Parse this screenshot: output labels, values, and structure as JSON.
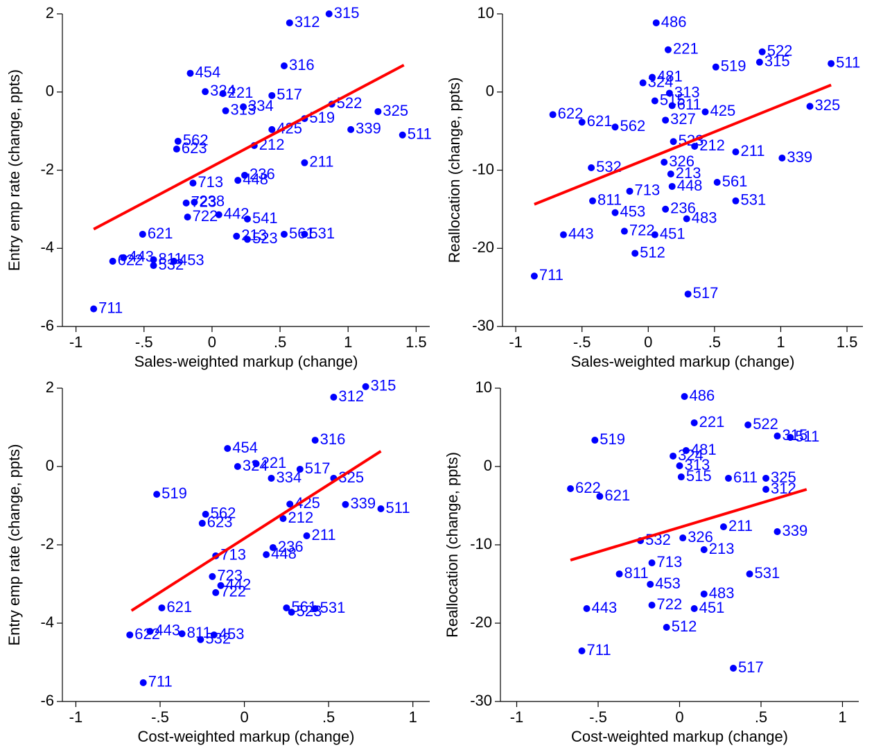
{
  "chart_data": [
    {
      "type": "scatter",
      "x_label": "Sales-weighted markup (change)",
      "y_label": "Entry emp rate (change, ppts)",
      "xlim": [
        -1.1,
        1.6
      ],
      "ylim": [
        -6,
        2
      ],
      "xticks": [
        -1,
        {
          "value": -0.5,
          "label": "-.5"
        },
        0,
        {
          "value": 0.5,
          "label": ".5"
        },
        1,
        1.5
      ],
      "yticks": [
        -6,
        -4,
        -2,
        0,
        2
      ],
      "color": "#0000ff",
      "labels": [
        "315",
        "312",
        "316",
        "454",
        "522",
        "325",
        "519",
        "339",
        "511",
        "425",
        "211",
        "621",
        "443",
        "622",
        "811",
        "532",
        "453",
        "711",
        "541",
        "561",
        "531",
        "523",
        "213",
        "713",
        "723",
        "722",
        "442",
        "448",
        "324",
        "313",
        "334",
        "517",
        "562",
        "623",
        "212",
        "238",
        "221",
        "236"
      ],
      "x": [
        0.86,
        0.57,
        0.53,
        -0.16,
        0.88,
        1.22,
        0.68,
        1.02,
        1.4,
        0.44,
        0.68,
        -0.51,
        -0.65,
        -0.73,
        -0.43,
        -0.43,
        -0.28,
        -0.87,
        0.26,
        0.53,
        0.68,
        0.26,
        0.18,
        -0.14,
        -0.19,
        -0.18,
        0.05,
        0.19,
        -0.05,
        0.1,
        0.23,
        0.44,
        -0.25,
        -0.26,
        0.31,
        -0.13,
        0.08,
        0.24
      ],
      "values": [
        2.0,
        1.77,
        0.67,
        0.48,
        -0.31,
        -0.5,
        -0.68,
        -0.96,
        -1.1,
        -0.96,
        -1.81,
        -3.64,
        -4.24,
        -4.33,
        -4.29,
        -4.44,
        -4.33,
        -5.55,
        -3.25,
        -3.64,
        -3.64,
        -3.77,
        -3.69,
        -2.33,
        -2.84,
        -3.2,
        -3.14,
        -2.26,
        0.01,
        -0.48,
        -0.38,
        -0.09,
        -1.26,
        -1.46,
        -1.37,
        -2.82,
        -0.04,
        -2.13
      ],
      "fit": {
        "x": [
          -0.87,
          1.41
        ],
        "values": [
          -3.51,
          0.69
        ],
        "color": "#ff0000"
      }
    },
    {
      "type": "scatter",
      "x_label": "Sales-weighted markup (change)",
      "y_label": "Reallocation (change, ppts)",
      "xlim": [
        -1.1,
        1.62
      ],
      "ylim": [
        -30,
        10
      ],
      "xticks": [
        -1,
        {
          "value": -0.5,
          "label": "-.5"
        },
        0,
        {
          "value": 0.5,
          "label": ".5"
        },
        1,
        1.5
      ],
      "yticks": [
        -30,
        -20,
        -10,
        0,
        10
      ],
      "color": "#0000ff",
      "labels": [
        "486",
        "221",
        "522",
        "315",
        "519",
        "511",
        "481",
        "324",
        "313",
        "611",
        "325",
        "622",
        "621",
        "425",
        "212",
        "211",
        "339",
        "532",
        "326",
        "213",
        "561",
        "531",
        "448",
        "811",
        "453",
        "236",
        "483",
        "443",
        "722",
        "451",
        "512",
        "711",
        "517",
        "713",
        "515",
        "327",
        "523",
        "562"
      ],
      "x": [
        0.06,
        0.15,
        0.86,
        0.84,
        0.51,
        1.38,
        0.03,
        -0.04,
        0.16,
        0.18,
        1.22,
        -0.72,
        -0.5,
        0.43,
        0.35,
        0.66,
        1.01,
        -0.43,
        0.12,
        0.17,
        0.52,
        0.66,
        0.18,
        -0.42,
        -0.25,
        0.13,
        0.29,
        -0.64,
        -0.18,
        0.05,
        -0.1,
        -0.86,
        0.3,
        -0.14,
        0.05,
        0.13,
        0.19,
        -0.25
      ],
      "values": [
        8.85,
        5.41,
        5.14,
        3.82,
        3.2,
        3.64,
        1.88,
        1.17,
        -0.15,
        -1.74,
        -1.83,
        -2.89,
        -3.86,
        -2.54,
        -6.95,
        -7.66,
        -8.45,
        -9.69,
        -8.98,
        -10.49,
        -11.55,
        -13.93,
        -12.08,
        -13.93,
        -15.43,
        -14.99,
        -16.22,
        -18.26,
        -17.81,
        -18.26,
        -20.64,
        -23.55,
        -25.85,
        -12.69,
        -1.13,
        -3.6,
        -6.34,
        -4.48
      ],
      "fit": {
        "x": [
          -0.86,
          1.38
        ],
        "values": [
          -14.37,
          0.9
        ],
        "color": "#ff0000"
      }
    },
    {
      "type": "scatter",
      "x_label": "Cost-weighted markup (change)",
      "y_label": "Entry emp rate (change, ppts)",
      "xlim": [
        -1.08,
        1.1
      ],
      "ylim": [
        -6,
        2
      ],
      "xticks": [
        -1,
        {
          "value": -0.5,
          "label": "-.5"
        },
        0,
        {
          "value": 0.5,
          "label": ".5"
        },
        1
      ],
      "yticks": [
        -6,
        -4,
        -2,
        0,
        2
      ],
      "color": "#0000ff",
      "labels": [
        "315",
        "312",
        "316",
        "454",
        "519",
        "325",
        "425",
        "339",
        "511",
        "212",
        "211",
        "236",
        "713",
        "723",
        "722",
        "621",
        "442",
        "561",
        "531",
        "523",
        "622",
        "443",
        "811",
        "453",
        "532",
        "711",
        "562",
        "623",
        "517",
        "334",
        "448",
        "324",
        "221"
      ],
      "x": [
        0.72,
        0.53,
        0.42,
        -0.1,
        -0.52,
        0.53,
        0.27,
        0.6,
        0.81,
        0.23,
        0.37,
        0.17,
        -0.17,
        -0.19,
        -0.17,
        -0.49,
        -0.14,
        0.25,
        0.42,
        0.28,
        -0.68,
        -0.56,
        -0.37,
        -0.18,
        -0.26,
        -0.6,
        -0.23,
        -0.25,
        0.33,
        0.16,
        0.13,
        -0.04,
        0.07
      ],
      "values": [
        2.04,
        1.77,
        0.67,
        0.46,
        -0.71,
        -0.3,
        -0.96,
        -0.97,
        -1.08,
        -1.33,
        -1.77,
        -2.07,
        -2.28,
        -2.81,
        -3.22,
        -3.61,
        -3.04,
        -3.61,
        -3.63,
        -3.72,
        -4.3,
        -4.21,
        -4.27,
        -4.3,
        -4.42,
        -5.52,
        -1.22,
        -1.45,
        -0.07,
        -0.3,
        -2.25,
        0.0,
        0.07
      ],
      "fit": {
        "x": [
          -0.67,
          0.81
        ],
        "values": [
          -3.68,
          0.39
        ],
        "color": "#ff0000"
      }
    },
    {
      "type": "scatter",
      "x_label": "Cost-weighted markup (change)",
      "y_label": "Reallocation (change, ppts)",
      "xlim": [
        -1.1,
        1.1
      ],
      "ylim": [
        -30,
        10
      ],
      "xticks": [
        -1,
        {
          "value": -0.5,
          "label": "-.5"
        },
        0,
        {
          "value": 0.5,
          "label": ".5"
        },
        1
      ],
      "yticks": [
        -30,
        -20,
        -10,
        0,
        10
      ],
      "color": "#0000ff",
      "labels": [
        "486",
        "221",
        "522",
        "519",
        "315",
        "511",
        "481",
        "324",
        "313",
        "611",
        "325",
        "622",
        "621",
        "515",
        "211",
        "339",
        "532",
        "326",
        "213",
        "531",
        "811",
        "713",
        "453",
        "483",
        "722",
        "451",
        "443",
        "512",
        "711",
        "517",
        "312"
      ],
      "x": [
        0.03,
        0.09,
        0.42,
        -0.52,
        0.6,
        0.68,
        0.04,
        -0.04,
        0.0,
        0.3,
        0.53,
        -0.67,
        -0.49,
        0.01,
        0.27,
        0.6,
        -0.24,
        0.02,
        0.15,
        0.43,
        -0.37,
        -0.17,
        -0.18,
        0.15,
        -0.17,
        0.09,
        -0.57,
        -0.08,
        -0.6,
        0.33,
        0.53
      ],
      "values": [
        8.94,
        5.58,
        5.31,
        3.36,
        3.89,
        3.72,
        2.04,
        1.33,
        0.09,
        -1.5,
        -1.5,
        -2.83,
        -3.81,
        -1.33,
        -7.7,
        -8.32,
        -9.47,
        -9.12,
        -10.62,
        -13.72,
        -13.72,
        -12.3,
        -15.04,
        -16.28,
        -17.7,
        -18.14,
        -18.14,
        -20.53,
        -23.54,
        -25.75,
        -2.92
      ],
      "fit": {
        "x": [
          -0.67,
          0.78
        ],
        "values": [
          -11.95,
          -2.92
        ],
        "color": "#ff0000"
      }
    }
  ]
}
